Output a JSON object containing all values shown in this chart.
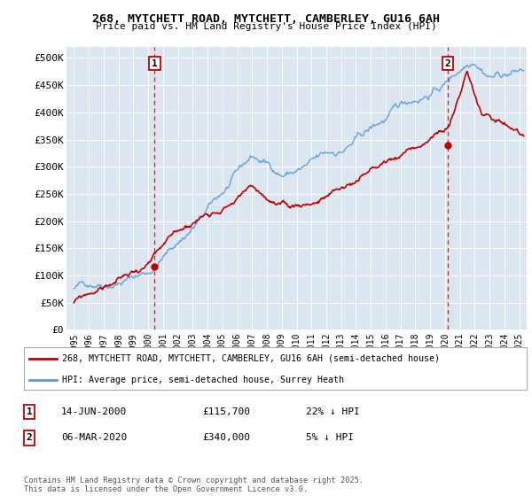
{
  "title_line1": "268, MYTCHETT ROAD, MYTCHETT, CAMBERLEY, GU16 6AH",
  "title_line2": "Price paid vs. HM Land Registry's House Price Index (HPI)",
  "ylim": [
    0,
    520000
  ],
  "xlim_start": 1994.5,
  "xlim_end": 2025.5,
  "yticks": [
    0,
    50000,
    100000,
    150000,
    200000,
    250000,
    300000,
    350000,
    400000,
    450000,
    500000
  ],
  "ytick_labels": [
    "£0",
    "£50K",
    "£100K",
    "£150K",
    "£200K",
    "£250K",
    "£300K",
    "£350K",
    "£400K",
    "£450K",
    "£500K"
  ],
  "hpi_color": "#5b9bd5",
  "price_color": "#c00000",
  "dashed_line_color": "#c00000",
  "marker1_x": 2000.44,
  "marker1_y": 115700,
  "marker2_x": 2020.18,
  "marker2_y": 340000,
  "legend_line1": "268, MYTCHETT ROAD, MYTCHETT, CAMBERLEY, GU16 6AH (semi-detached house)",
  "legend_line2": "HPI: Average price, semi-detached house, Surrey Heath",
  "note1_label": "1",
  "note1_date": "14-JUN-2000",
  "note1_price": "£115,700",
  "note1_hpi": "22% ↓ HPI",
  "note2_label": "2",
  "note2_date": "06-MAR-2020",
  "note2_price": "£340,000",
  "note2_hpi": "5% ↓ HPI",
  "copyright_text": "Contains HM Land Registry data © Crown copyright and database right 2025.\nThis data is licensed under the Open Government Licence v3.0.",
  "bg_color": "#dce6f1",
  "grid_color": "#ffffff",
  "xticks": [
    1995,
    1996,
    1997,
    1998,
    1999,
    2000,
    2001,
    2002,
    2003,
    2004,
    2005,
    2006,
    2007,
    2008,
    2009,
    2010,
    2011,
    2012,
    2013,
    2014,
    2015,
    2016,
    2017,
    2018,
    2019,
    2020,
    2021,
    2022,
    2023,
    2024,
    2025
  ]
}
